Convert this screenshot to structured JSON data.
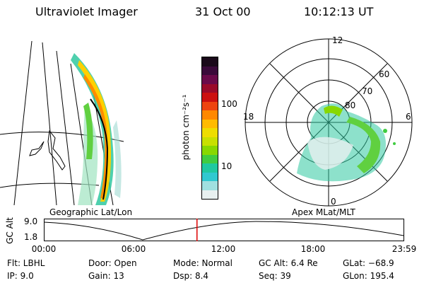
{
  "header": {
    "title": "Ultraviolet Imager",
    "date": "31 Oct 00",
    "time": "10:12:13 UT"
  },
  "geo_panel": {
    "label": "Geographic Lat/Lon"
  },
  "colorbar": {
    "unit_label": "photon cm⁻²s⁻¹",
    "ticks": [
      "100",
      "10"
    ],
    "colors": [
      "#1a0a1a",
      "#3a0a3a",
      "#6a0a4a",
      "#9a0a2a",
      "#cc1010",
      "#ee4410",
      "#ff8800",
      "#ffbb00",
      "#eedd00",
      "#c8e000",
      "#88d800",
      "#40cc40",
      "#20c8a0",
      "#30c8d0",
      "#a0e0e0",
      "#e8f0f0"
    ]
  },
  "polar_panel": {
    "label": "Apex MLat/MLT",
    "mlt_labels": [
      "12",
      "18",
      "6",
      "0"
    ],
    "mlat_labels": [
      "60",
      "70",
      "80"
    ]
  },
  "timeline": {
    "ylabel": "GC Alt",
    "y_top": "9.0",
    "y_bottom": "1.8",
    "x_ticks": [
      "00:00",
      "06:00",
      "12:00",
      "18:00",
      "23:59"
    ],
    "current_time_fraction": 0.425
  },
  "status": {
    "flt": "Flt: LBHL",
    "ip": "IP:  9.0",
    "door": "Door: Open",
    "gain": "Gain: 13",
    "mode": "Mode: Normal",
    "dsp": "Dsp:     8.4",
    "gcalt": "GC Alt: 6.4 Re",
    "seq": "Seq: 39",
    "glat": "GLat: −68.9",
    "glon": "GLon: 195.4"
  }
}
